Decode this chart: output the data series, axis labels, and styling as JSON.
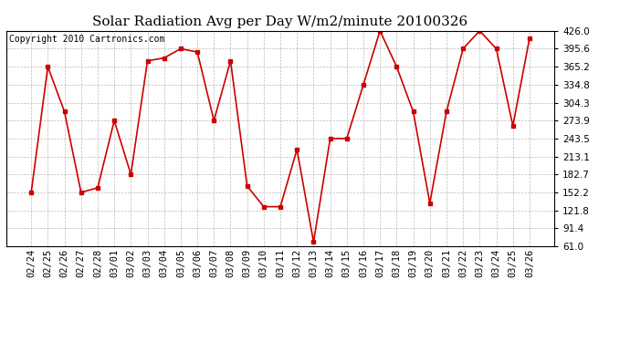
{
  "title": "Solar Radiation Avg per Day W/m2/minute 20100326",
  "copyright": "Copyright 2010 Cartronics.com",
  "dates": [
    "02/24",
    "02/25",
    "02/26",
    "02/27",
    "02/28",
    "03/01",
    "03/02",
    "03/03",
    "03/04",
    "03/05",
    "03/06",
    "03/07",
    "03/08",
    "03/09",
    "03/10",
    "03/11",
    "03/12",
    "03/13",
    "03/14",
    "03/15",
    "03/16",
    "03/17",
    "03/18",
    "03/19",
    "03/20",
    "03/21",
    "03/22",
    "03/23",
    "03/24",
    "03/25",
    "03/26"
  ],
  "values": [
    152.2,
    365.2,
    289.0,
    152.2,
    160.0,
    273.9,
    182.7,
    375.0,
    380.0,
    395.6,
    390.0,
    273.9,
    375.0,
    163.0,
    128.0,
    128.0,
    225.0,
    68.0,
    243.5,
    243.5,
    334.8,
    426.0,
    365.2,
    289.0,
    134.0,
    289.0,
    395.6,
    426.0,
    395.6,
    265.0,
    413.0
  ],
  "line_color": "#cc0000",
  "marker": "s",
  "marker_size": 3,
  "background_color": "#ffffff",
  "grid_color": "#bbbbbb",
  "ylim": [
    61.0,
    426.0
  ],
  "yticks": [
    61.0,
    91.4,
    121.8,
    152.2,
    182.7,
    213.1,
    243.5,
    273.9,
    304.3,
    334.8,
    365.2,
    395.6,
    426.0
  ],
  "title_fontsize": 11,
  "copyright_fontsize": 7,
  "tick_fontsize": 7.5
}
